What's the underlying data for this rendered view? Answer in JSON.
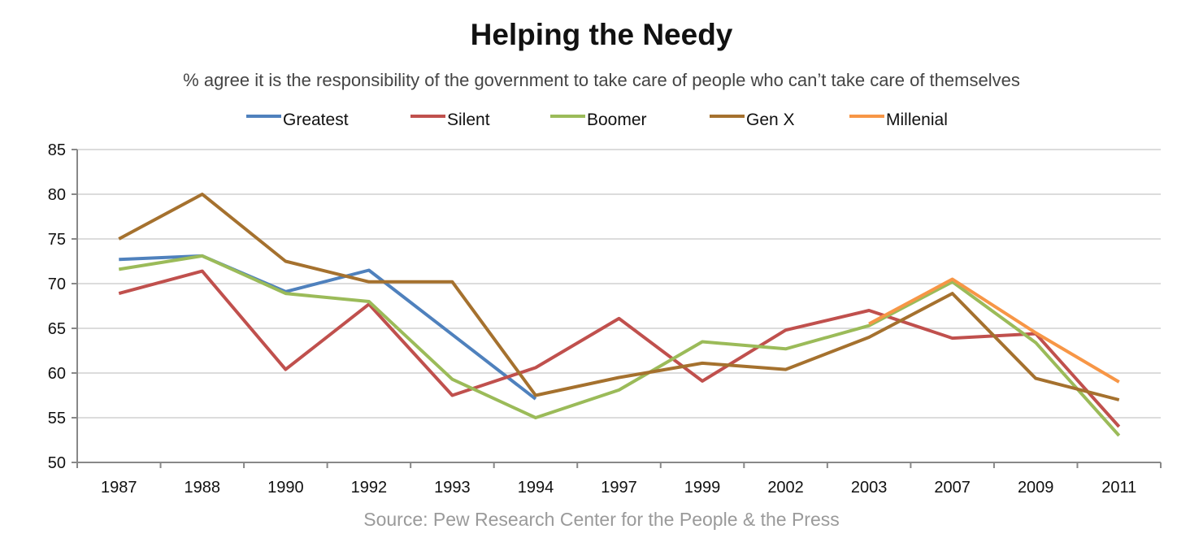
{
  "chart_data": {
    "type": "line",
    "title": "Helping the Needy",
    "subtitle": "% agree it is the responsibility of the government to take care of people who can’t take care of themselves",
    "source": "Source: Pew Research Center for the People & the Press",
    "categories": [
      "1987",
      "1988",
      "1990",
      "1992",
      "1993",
      "1994",
      "1997",
      "1999",
      "2002",
      "2003",
      "2007",
      "2009",
      "2011"
    ],
    "ylim": [
      50,
      85
    ],
    "yticks": [
      50,
      55,
      60,
      65,
      70,
      75,
      80,
      85
    ],
    "grid": true,
    "legend_position": "top",
    "series": [
      {
        "name": "Greatest",
        "color": "#4f81bd",
        "values": [
          72.7,
          73.1,
          69.1,
          71.5,
          64.3,
          57.1,
          null,
          null,
          null,
          null,
          null,
          null,
          null
        ]
      },
      {
        "name": "Silent",
        "color": "#c0504d",
        "values": [
          68.9,
          71.4,
          60.4,
          67.7,
          57.5,
          60.6,
          66.1,
          59.1,
          64.8,
          67.0,
          63.9,
          64.4,
          54.0
        ]
      },
      {
        "name": "Boomer",
        "color": "#9bbb59",
        "values": [
          71.6,
          73.1,
          68.9,
          68.0,
          59.3,
          55.0,
          58.1,
          63.5,
          62.7,
          65.3,
          70.2,
          63.4,
          53.0
        ]
      },
      {
        "name": "Gen X",
        "color": "#a5712e",
        "values": [
          75.0,
          80.0,
          72.5,
          70.2,
          70.2,
          57.5,
          59.5,
          61.1,
          60.4,
          64.0,
          68.9,
          59.4,
          57.0
        ]
      },
      {
        "name": "Millenial",
        "color": "#f79646",
        "values": [
          null,
          null,
          null,
          null,
          null,
          null,
          null,
          null,
          null,
          65.5,
          70.5,
          64.5,
          59.0
        ]
      }
    ]
  }
}
